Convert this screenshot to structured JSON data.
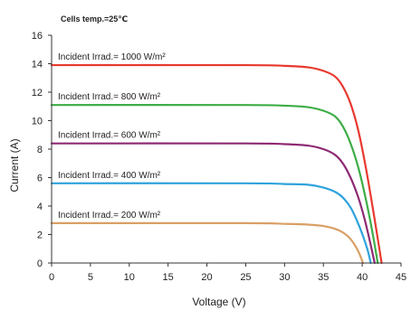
{
  "chart_data": {
    "type": "line",
    "note": "Cells temp.=25℃",
    "xlabel": "Voltage (V)",
    "ylabel": "Current (A)",
    "xlim": [
      0,
      45
    ],
    "ylim": [
      0,
      16
    ],
    "xticks": [
      0,
      5,
      10,
      15,
      20,
      25,
      30,
      35,
      40,
      45
    ],
    "yticks": [
      0,
      2,
      4,
      6,
      8,
      10,
      12,
      14,
      16
    ],
    "grid": false,
    "legend": "none",
    "series": [
      {
        "label": "Incident Irrad.= 1000 W/m²",
        "color": "#e8392f",
        "x": [
          0,
          25,
          30,
          33,
          35,
          36.5,
          37.5,
          38.5,
          39.5,
          40.5,
          41.5,
          42.5
        ],
        "y": [
          13.9,
          13.9,
          13.85,
          13.75,
          13.5,
          13.1,
          12.4,
          11.2,
          9.3,
          6.6,
          3.4,
          0
        ]
      },
      {
        "label": "Incident Irrad.= 800 W/m²",
        "color": "#3dad46",
        "x": [
          0,
          25,
          30,
          33,
          35,
          36.5,
          37.5,
          38.5,
          39.5,
          40.5,
          41.3,
          42.0
        ],
        "y": [
          11.1,
          11.1,
          11.05,
          10.95,
          10.7,
          10.3,
          9.6,
          8.4,
          6.7,
          4.4,
          2.2,
          0
        ]
      },
      {
        "label": "Incident Irrad.= 600 W/m²",
        "color": "#8e2a74",
        "x": [
          0,
          25,
          30,
          33,
          35,
          36.5,
          37.5,
          38.5,
          39.5,
          40.3,
          41.0,
          41.6
        ],
        "y": [
          8.4,
          8.4,
          8.35,
          8.25,
          8.0,
          7.6,
          7.0,
          6.0,
          4.6,
          3.1,
          1.5,
          0
        ]
      },
      {
        "label": "Incident Irrad.= 400 W/m²",
        "color": "#2fa3dc",
        "x": [
          0,
          25,
          30,
          33,
          35,
          36.5,
          37.5,
          38.5,
          39.3,
          40.1,
          40.7,
          41.1
        ],
        "y": [
          5.6,
          5.6,
          5.55,
          5.5,
          5.3,
          5.0,
          4.6,
          3.9,
          3.0,
          1.9,
          0.9,
          0
        ]
      },
      {
        "label": "Incident Irrad.= 200 W/m²",
        "color": "#d9a066",
        "x": [
          0,
          25,
          30,
          33,
          35,
          36.5,
          37.5,
          38.3,
          39.0,
          39.6,
          40.1
        ],
        "y": [
          2.8,
          2.8,
          2.75,
          2.7,
          2.6,
          2.4,
          2.15,
          1.8,
          1.3,
          0.7,
          0
        ]
      }
    ]
  }
}
